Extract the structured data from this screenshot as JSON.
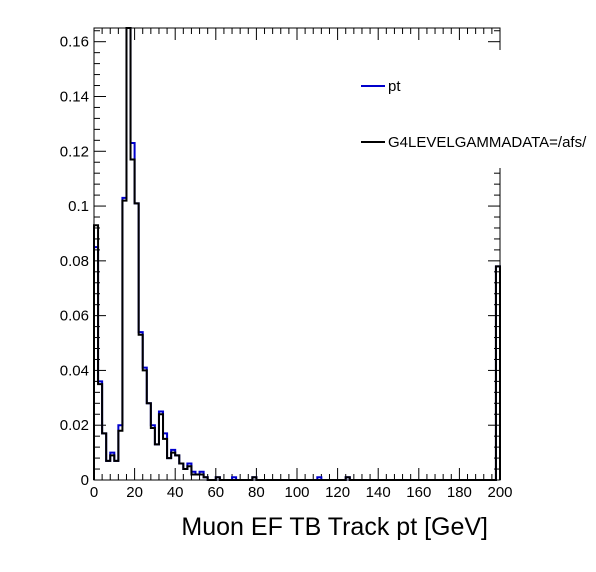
{
  "chart_data": {
    "type": "histogram",
    "title": "",
    "xlabel": "Muon EF TB Track pt [GeV]",
    "ylabel": "",
    "xlim": [
      0,
      200
    ],
    "ylim": [
      0,
      0.165
    ],
    "bin_width": 2,
    "x_ticks": [
      0,
      20,
      40,
      60,
      80,
      100,
      120,
      140,
      160,
      180,
      200
    ],
    "y_ticks": [
      0,
      0.02,
      0.04,
      0.06,
      0.08,
      0.1,
      0.12,
      0.14,
      0.16
    ],
    "legend_placement": "top-right",
    "series": [
      {
        "name": "pt",
        "color": "#0000cc",
        "bins": [
          [
            0,
            0.085
          ],
          [
            2,
            0.036
          ],
          [
            4,
            0.017
          ],
          [
            6,
            0.007
          ],
          [
            8,
            0.01
          ],
          [
            10,
            0.007
          ],
          [
            12,
            0.02
          ],
          [
            14,
            0.103
          ],
          [
            16,
            0.165
          ],
          [
            18,
            0.123
          ],
          [
            20,
            0.101
          ],
          [
            22,
            0.054
          ],
          [
            24,
            0.041
          ],
          [
            26,
            0.028
          ],
          [
            28,
            0.02
          ],
          [
            30,
            0.013
          ],
          [
            32,
            0.025
          ],
          [
            34,
            0.017
          ],
          [
            36,
            0.008
          ],
          [
            38,
            0.011
          ],
          [
            40,
            0.009
          ],
          [
            42,
            0.006
          ],
          [
            44,
            0.004
          ],
          [
            46,
            0.006
          ],
          [
            48,
            0.003
          ],
          [
            50,
            0.002
          ],
          [
            52,
            0.003
          ],
          [
            54,
            0.001
          ],
          [
            56,
            0.0
          ],
          [
            58,
            0.0
          ],
          [
            60,
            0.001
          ],
          [
            68,
            0.001
          ],
          [
            78,
            0.001
          ],
          [
            110,
            0.001
          ],
          [
            124,
            0.001
          ],
          [
            198,
            0.078
          ]
        ]
      },
      {
        "name": "G4LEVELGAMMADATA=/afs/",
        "color": "#000000",
        "bins": [
          [
            0,
            0.093
          ],
          [
            2,
            0.035
          ],
          [
            4,
            0.017
          ],
          [
            6,
            0.007
          ],
          [
            8,
            0.009
          ],
          [
            10,
            0.007
          ],
          [
            12,
            0.018
          ],
          [
            14,
            0.102
          ],
          [
            16,
            0.165
          ],
          [
            18,
            0.117
          ],
          [
            20,
            0.101
          ],
          [
            22,
            0.053
          ],
          [
            24,
            0.04
          ],
          [
            26,
            0.028
          ],
          [
            28,
            0.019
          ],
          [
            30,
            0.013
          ],
          [
            32,
            0.024
          ],
          [
            34,
            0.015
          ],
          [
            36,
            0.008
          ],
          [
            38,
            0.01
          ],
          [
            40,
            0.009
          ],
          [
            42,
            0.006
          ],
          [
            44,
            0.004
          ],
          [
            46,
            0.005
          ],
          [
            48,
            0.002
          ],
          [
            50,
            0.002
          ],
          [
            52,
            0.002
          ],
          [
            54,
            0.001
          ],
          [
            56,
            0.0
          ],
          [
            58,
            0.0
          ],
          [
            60,
            0.001
          ],
          [
            68,
            0.0
          ],
          [
            78,
            0.001
          ],
          [
            110,
            0.0
          ],
          [
            124,
            0.001
          ],
          [
            198,
            0.078
          ]
        ]
      }
    ]
  }
}
